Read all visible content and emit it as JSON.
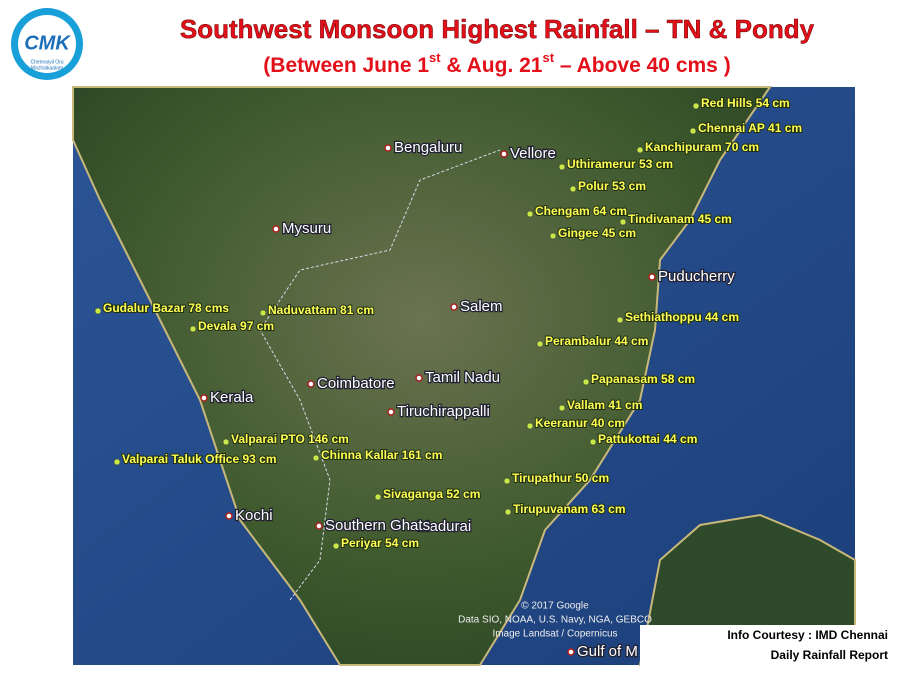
{
  "header": {
    "title": "Southwest Monsoon Highest Rainfall – TN & Pondy",
    "subtitle_parts": [
      "(Between June 1",
      "st",
      " & Aug. 21",
      "st",
      " – Above 40 cms )"
    ]
  },
  "logo": {
    "mark": "CMK",
    "lines": [
      "Chennaiyil Oru",
      "Mazhaikaalam"
    ]
  },
  "places": [
    "Bengaluru",
    "Vellore",
    "Mysuru",
    "Puducherry",
    "Salem",
    "Coimbatore",
    "Tamil Nadu",
    "Kerala",
    "Tiruchirappalli",
    "Kochi",
    "Madurai",
    "Southern Ghats",
    "Gulf of M"
  ],
  "stations": [
    "Red Hills 54 cm",
    "Chennai AP 41 cm",
    "Kanchipuram 70 cm",
    "Uthiramerur 53 cm",
    "Polur 53 cm",
    "Chengam 64 cm",
    "Tindivanam 45 cm",
    "Gingee 45 cm",
    "Sethiathoppu 44 cm",
    "Perambalur 44 cm",
    "Papanasam 58 cm",
    "Vallam 41 cm",
    "Keeranur 40 cm",
    "Pattukottai 44 cm",
    "Gudalur Bazar 78 cms",
    "Naduvattam 81 cm",
    "Devala 97 cm",
    "Valparai PTO 146 cm",
    "Valparai Taluk Office 93 cm",
    "Chinna Kallar 161 cm",
    "Tirupathur 50 cm",
    "Sivaganga 52 cm",
    "Tirupuvanam 63 cm",
    "Periyar 54 cm"
  ],
  "attribution": [
    "© 2017 Google",
    "Data SIO, NOAA, U.S. Navy, NGA, GEBCO",
    "Image Landsat / Copernicus"
  ],
  "courtesy": [
    "Info Courtesy : IMD Chennai",
    "Daily Rainfall Report"
  ]
}
